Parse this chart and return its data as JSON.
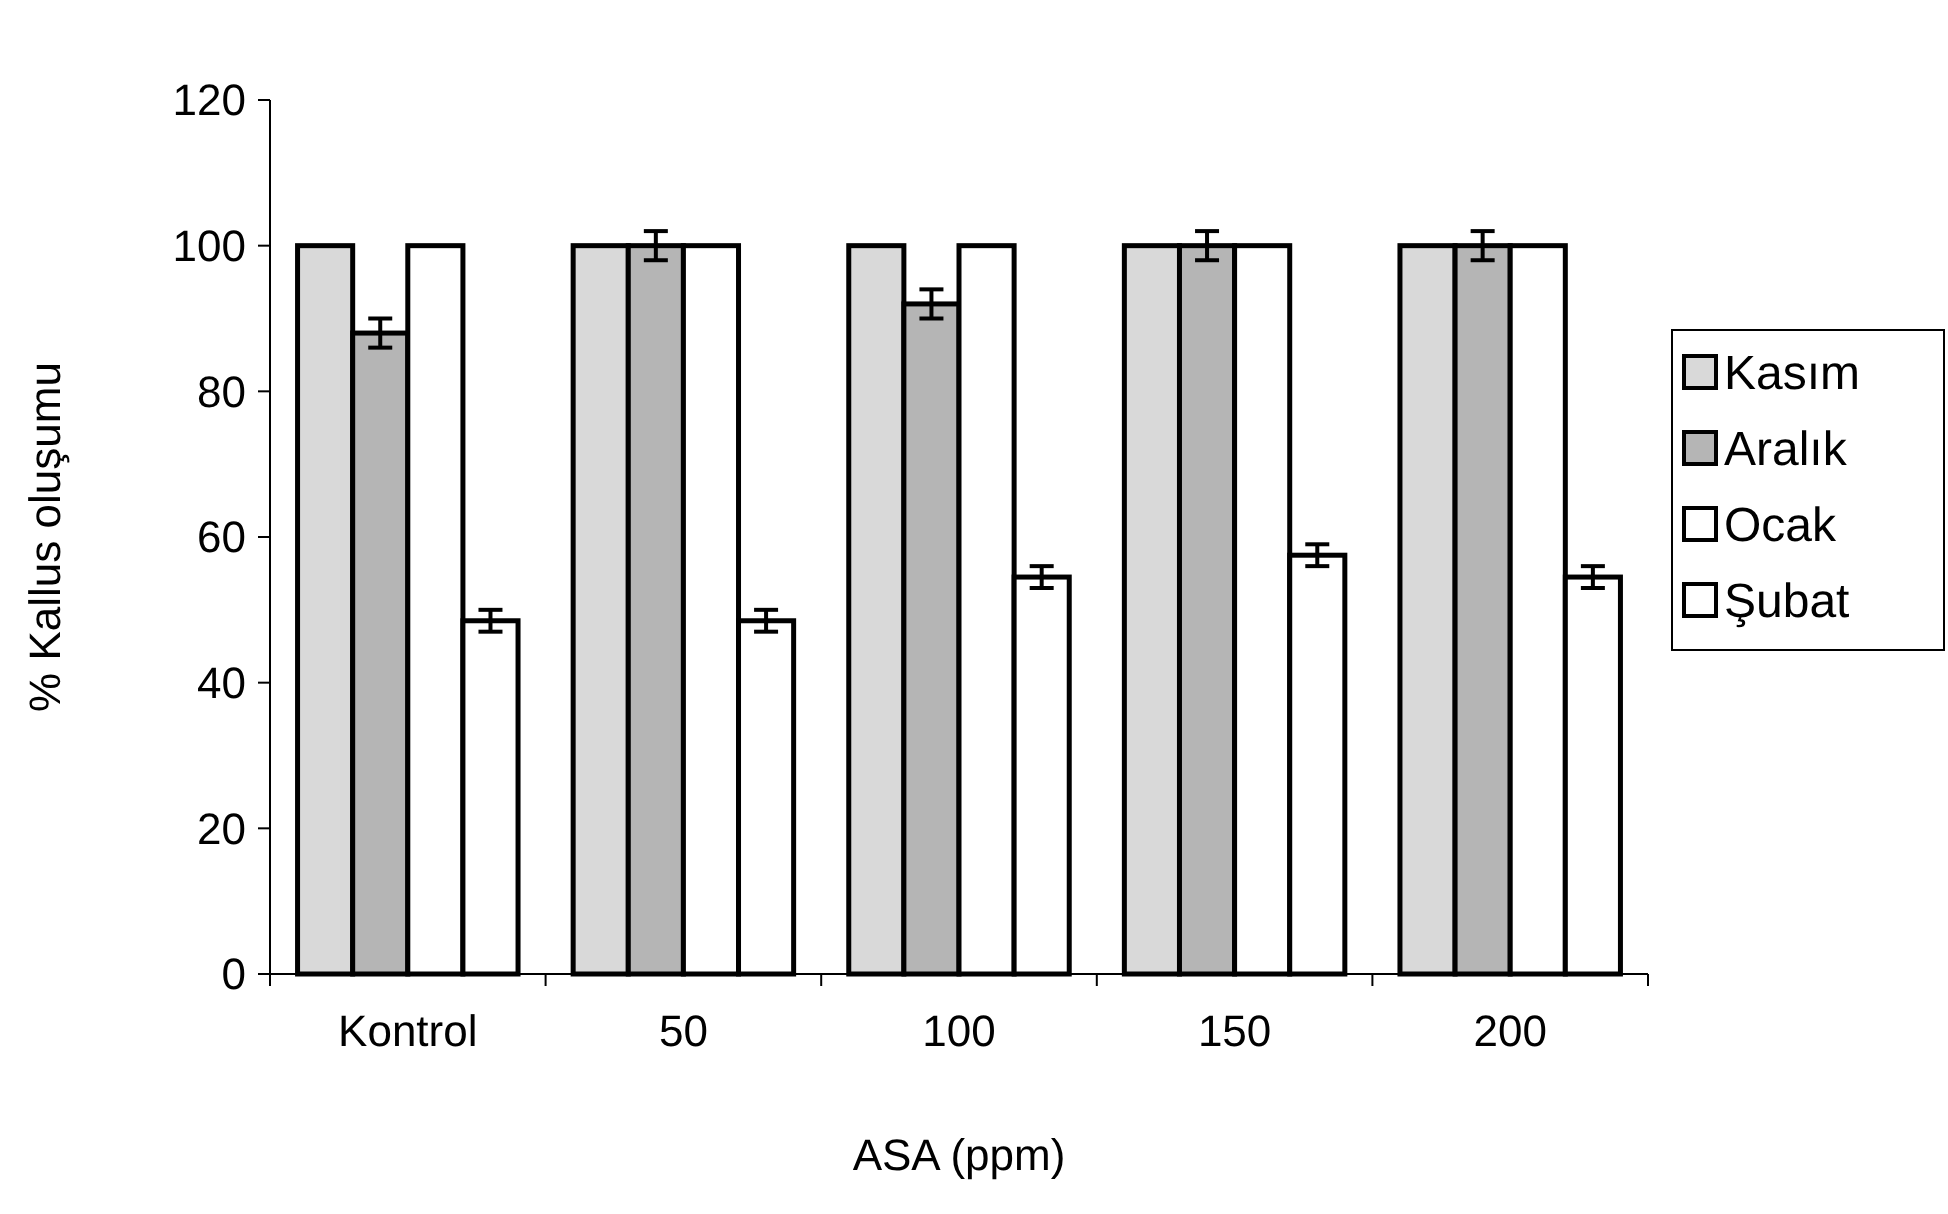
{
  "chart_data": {
    "type": "bar",
    "xlabel": "ASA (ppm)",
    "ylabel": "% Kallus oluşumu",
    "categories": [
      "Kontrol",
      "50",
      "100",
      "150",
      "200"
    ],
    "series": [
      {
        "name": "Kasım",
        "color": "#d9d9d9",
        "values": [
          100,
          100,
          100,
          100,
          100
        ]
      },
      {
        "name": "Aralık",
        "color": "#b5b5b5",
        "values": [
          88,
          100,
          92,
          100,
          100
        ],
        "errors": [
          2,
          2,
          2,
          2,
          2
        ]
      },
      {
        "name": "Ocak",
        "color": "#ffffff",
        "values": [
          100,
          100,
          100,
          100,
          100
        ]
      },
      {
        "name": "Şubat",
        "color": "#ffffff",
        "values": [
          48.5,
          48.5,
          54.5,
          57.5,
          54.5
        ],
        "errors": [
          1.5,
          1.5,
          1.5,
          1.5,
          1.5
        ]
      }
    ],
    "ylim": [
      0,
      120
    ],
    "yticks": [
      0,
      20,
      40,
      60,
      80,
      100,
      120
    ],
    "grid": false,
    "legend": "right"
  }
}
